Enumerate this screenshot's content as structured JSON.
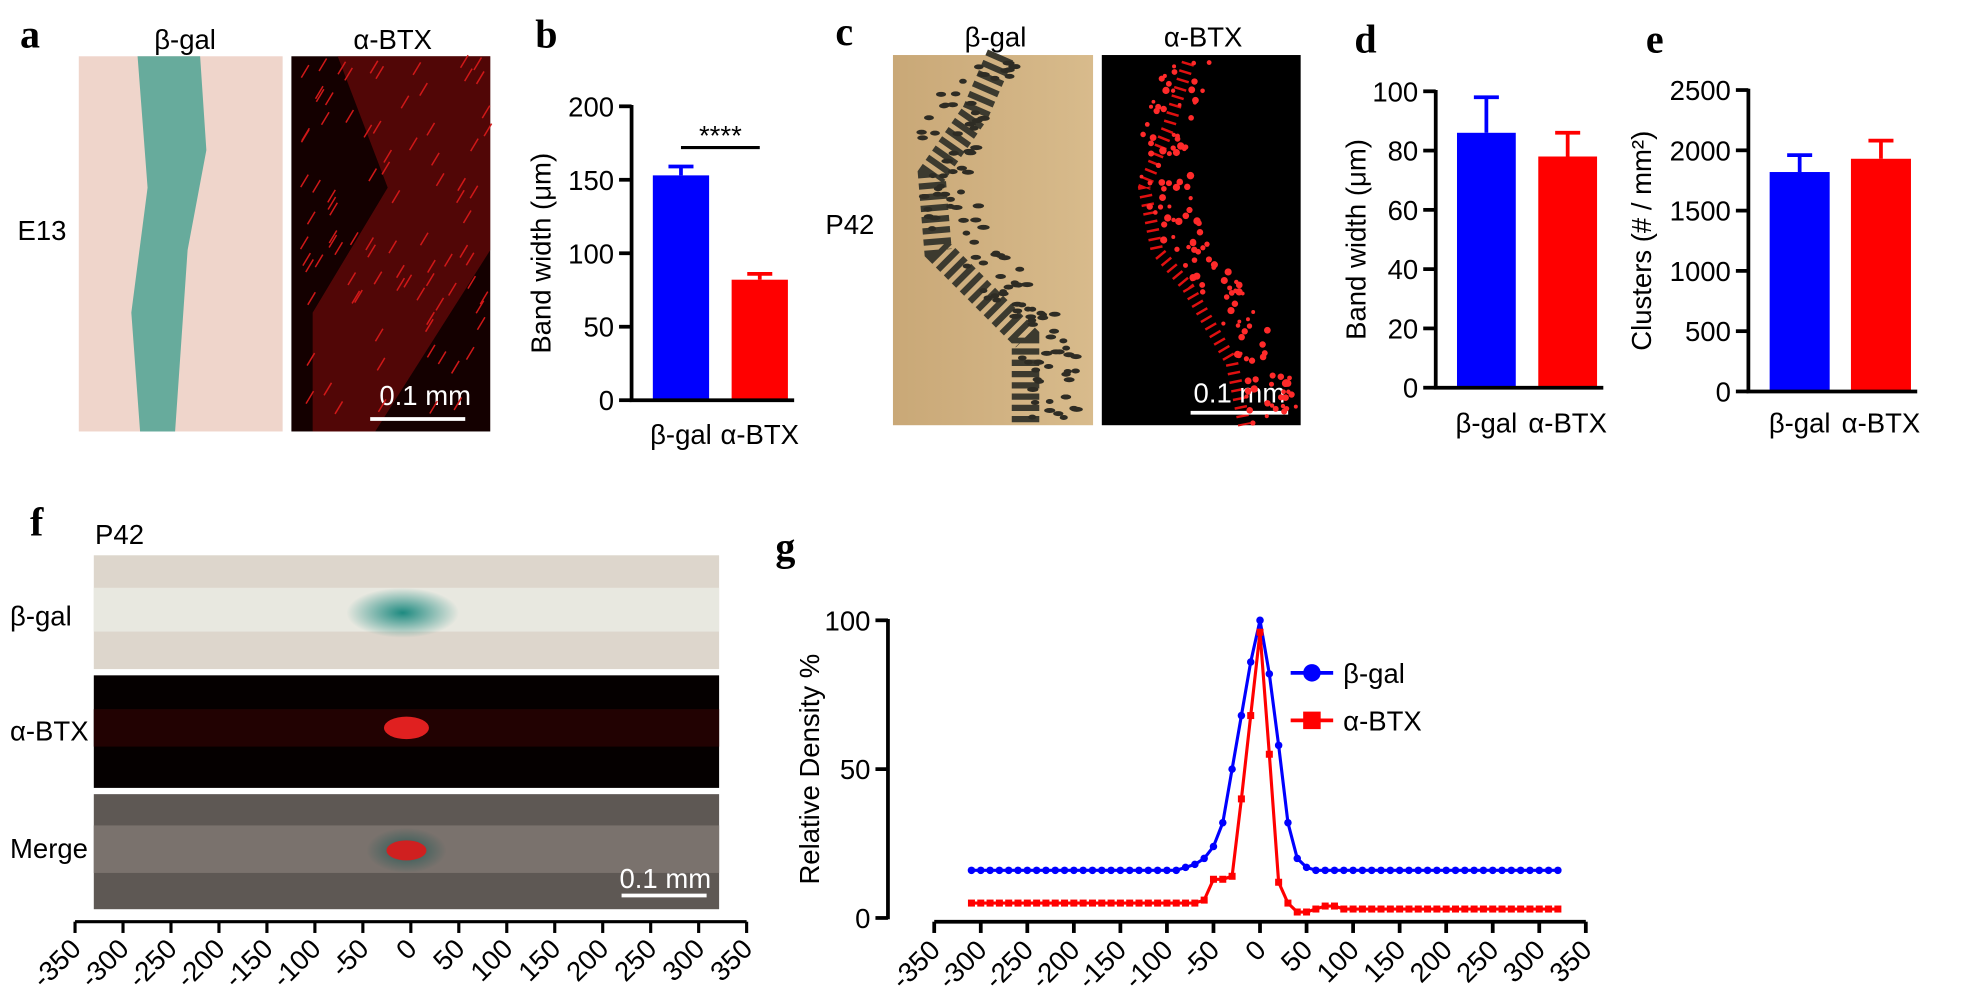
{
  "figure": {
    "panel_labels": [
      "a",
      "b",
      "c",
      "d",
      "e",
      "f",
      "g"
    ],
    "panel_a": {
      "columns": [
        "β-gal",
        "α-BTX"
      ],
      "row_label": "E13",
      "scale_bar": "0.1 mm"
    },
    "panel_c": {
      "columns": [
        "β-gal",
        "α-BTX"
      ],
      "row_label": "P42",
      "scale_bar": "0.1 mm"
    },
    "panel_f": {
      "title": "P42",
      "rows": [
        "β-gal",
        "α-BTX",
        "Merge"
      ],
      "scale_bar": "0.1 mm",
      "xlim": [
        -350,
        350
      ],
      "xticks": [
        -350,
        -300,
        -250,
        -200,
        -150,
        -100,
        -50,
        0,
        50,
        100,
        150,
        200,
        250,
        300,
        350
      ]
    }
  },
  "chart_data": [
    {
      "type": "bar",
      "categories": [
        "β-gal",
        "α-BTX"
      ],
      "values": [
        153,
        82
      ],
      "errors": [
        6,
        4
      ],
      "colors": [
        "#0000ff",
        "#ff0000"
      ],
      "ylabel": "Band  width (μm)",
      "ylim": [
        0,
        200
      ],
      "yticks": [
        0,
        50,
        100,
        150,
        200
      ],
      "annotation": "****"
    },
    {
      "type": "bar",
      "categories": [
        "β-gal",
        "α-BTX"
      ],
      "values": [
        86,
        78
      ],
      "errors": [
        12,
        8
      ],
      "colors": [
        "#0000ff",
        "#ff0000"
      ],
      "ylabel": "Band  width (μm)",
      "ylim": [
        0,
        100
      ],
      "yticks": [
        0,
        20,
        40,
        60,
        80,
        100
      ]
    },
    {
      "type": "bar",
      "categories": [
        "β-gal",
        "α-BTX"
      ],
      "values": [
        1820,
        1930
      ],
      "errors": [
        140,
        150
      ],
      "colors": [
        "#0000ff",
        "#ff0000"
      ],
      "ylabel": "Clusters (# / mm²)",
      "ylim": [
        0,
        2500
      ],
      "yticks": [
        0,
        500,
        1000,
        1500,
        2000,
        2500
      ]
    },
    {
      "type": "line",
      "ylabel": "Relative Density %",
      "legend": "upper right",
      "x": [
        -310,
        -300,
        -290,
        -280,
        -270,
        -260,
        -250,
        -240,
        -230,
        -220,
        -210,
        -200,
        -190,
        -180,
        -170,
        -160,
        -150,
        -140,
        -130,
        -120,
        -110,
        -100,
        -90,
        -80,
        -70,
        -60,
        -50,
        -40,
        -30,
        -20,
        -10,
        0,
        10,
        20,
        30,
        40,
        50,
        60,
        70,
        80,
        90,
        100,
        110,
        120,
        130,
        140,
        150,
        160,
        170,
        180,
        190,
        200,
        210,
        220,
        230,
        240,
        250,
        260,
        270,
        280,
        290,
        300,
        310,
        320
      ],
      "series": [
        {
          "name": "β-gal",
          "color": "#0000ff",
          "marker": "circle",
          "values": [
            16,
            16,
            16,
            16,
            16,
            16,
            16,
            16,
            16,
            16,
            16,
            16,
            16,
            16,
            16,
            16,
            16,
            16,
            16,
            16,
            16,
            16,
            16,
            17,
            18,
            20,
            24,
            32,
            50,
            68,
            86,
            100,
            82,
            58,
            32,
            20,
            17,
            16,
            16,
            16,
            16,
            16,
            16,
            16,
            16,
            16,
            16,
            16,
            16,
            16,
            16,
            16,
            16,
            16,
            16,
            16,
            16,
            16,
            16,
            16,
            16,
            16,
            16,
            16
          ]
        },
        {
          "name": "α-BTX",
          "color": "#ff0000",
          "marker": "square",
          "values": [
            5,
            5,
            5,
            5,
            5,
            5,
            5,
            5,
            5,
            5,
            5,
            5,
            5,
            5,
            5,
            5,
            5,
            5,
            5,
            5,
            5,
            5,
            5,
            5,
            5,
            6,
            13,
            13,
            14,
            40,
            68,
            96,
            55,
            12,
            5,
            2,
            2,
            3,
            4,
            4,
            3,
            3,
            3,
            3,
            3,
            3,
            3,
            3,
            3,
            3,
            3,
            3,
            3,
            3,
            3,
            3,
            3,
            3,
            3,
            3,
            3,
            3,
            3,
            3
          ]
        }
      ],
      "xlim": [
        -350,
        350
      ],
      "xticks": [
        -350,
        -300,
        -250,
        -200,
        -150,
        -100,
        -50,
        0,
        50,
        100,
        150,
        200,
        250,
        300,
        350
      ],
      "ylim": [
        0,
        100
      ],
      "yticks": [
        0,
        50,
        100
      ]
    }
  ]
}
